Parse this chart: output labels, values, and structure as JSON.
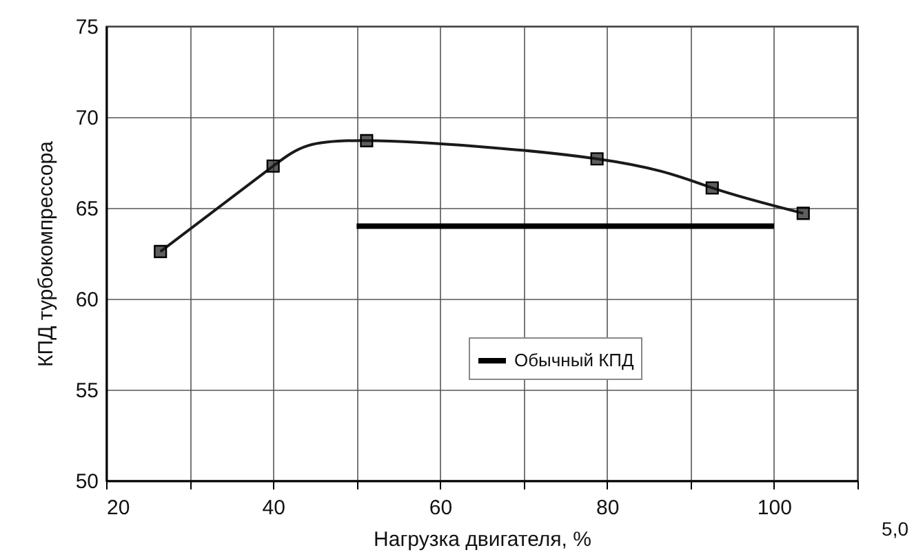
{
  "chart_data": {
    "type": "line",
    "xlabel": "Нагрузка двигателя, %",
    "ylabel": "КПД турбокомпрессора",
    "xlim": [
      20,
      110
    ],
    "xticks": [
      20,
      {
        "value": 30,
        "label": null
      },
      40,
      {
        "value": 50,
        "label": null
      },
      60,
      {
        "value": 70,
        "label": null
      },
      80,
      {
        "value": 90,
        "label": null
      },
      100,
      {
        "value": 110,
        "label": null
      }
    ],
    "ylim": [
      50,
      75
    ],
    "yticks": [
      50,
      55,
      60,
      65,
      70,
      75
    ],
    "grid": true,
    "legend": "bottom right",
    "series": [
      {
        "color": "#1a1a1a",
        "marker": "square",
        "x": [
          26.5,
          40,
          51.2,
          78.8,
          92.6,
          103.5
        ],
        "values": [
          62.6,
          67.3,
          68.7,
          67.7,
          66.1,
          64.7
        ]
      },
      {
        "name": "Обычный КПД",
        "color": "#000000",
        "marker": "none",
        "x": [
          50,
          100
        ],
        "values": [
          64,
          64
        ]
      }
    ],
    "annotations": [
      "5,0"
    ]
  }
}
